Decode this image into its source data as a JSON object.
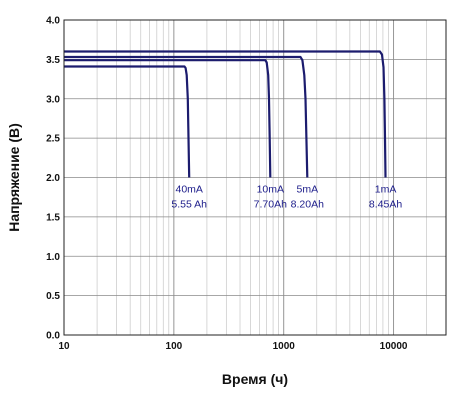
{
  "chart_data": {
    "type": "line",
    "xscale": "log",
    "xlim": [
      10,
      30000
    ],
    "ylim": [
      0,
      4.0
    ],
    "xlabel": "Время (ч)",
    "ylabel": "Напряжение (В)",
    "xticks": [
      "10",
      "100",
      "1000",
      "10000"
    ],
    "yticks": [
      "0.0",
      "0.5",
      "1.0",
      "1.5",
      "2.0",
      "2.5",
      "3.0",
      "3.5",
      "4.0"
    ],
    "grid": true,
    "line_color": "#1c1c6e",
    "annotation_color": "#1c1c8a",
    "series": [
      {
        "name": "40mA",
        "capacity": "5.55 Ah",
        "points": [
          [
            10,
            3.41
          ],
          [
            125,
            3.41
          ],
          [
            128,
            3.39
          ],
          [
            131,
            3.3
          ],
          [
            134,
            3.0
          ],
          [
            136,
            2.5
          ],
          [
            138,
            2.0
          ]
        ]
      },
      {
        "name": "10mA",
        "capacity": "7.70Ah",
        "points": [
          [
            10,
            3.49
          ],
          [
            680,
            3.49
          ],
          [
            700,
            3.46
          ],
          [
            722,
            3.3
          ],
          [
            735,
            3.0
          ],
          [
            745,
            2.5
          ],
          [
            755,
            2.0
          ]
        ]
      },
      {
        "name": "5mA",
        "capacity": "8.20Ah",
        "points": [
          [
            10,
            3.53
          ],
          [
            1420,
            3.53
          ],
          [
            1480,
            3.49
          ],
          [
            1540,
            3.3
          ],
          [
            1580,
            3.0
          ],
          [
            1610,
            2.5
          ],
          [
            1640,
            2.0
          ]
        ]
      },
      {
        "name": "1mA",
        "capacity": "8.45Ah",
        "points": [
          [
            10,
            3.6
          ],
          [
            7500,
            3.6
          ],
          [
            7850,
            3.56
          ],
          [
            8100,
            3.4
          ],
          [
            8250,
            3.0
          ],
          [
            8350,
            2.5
          ],
          [
            8450,
            2.0
          ]
        ]
      }
    ]
  }
}
